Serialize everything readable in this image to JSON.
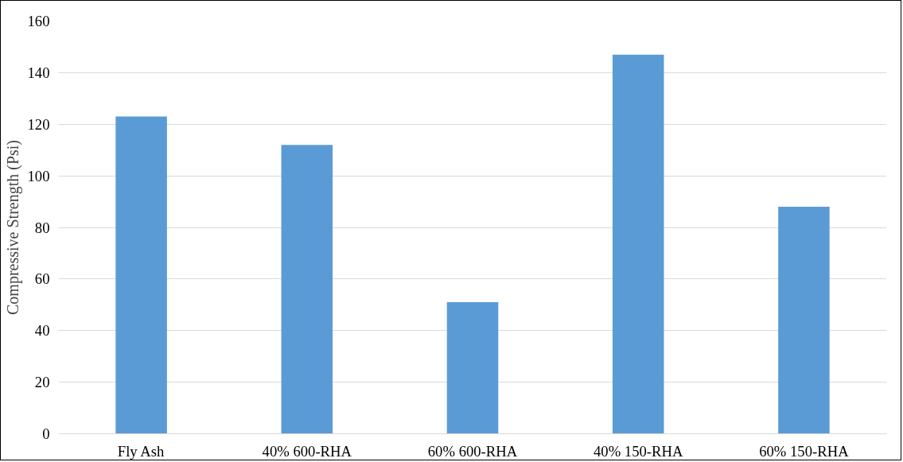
{
  "chart_data": {
    "type": "bar",
    "ylabel": "Compressive Strength (Psi)",
    "categories": [
      "Fly Ash",
      "40% 600-RHA",
      "60% 600-RHA",
      "40% 150-RHA",
      "60% 150-RHA"
    ],
    "values": [
      123,
      112,
      51,
      147,
      88
    ],
    "color": "#5b9bd5",
    "ylim": [
      0,
      160
    ],
    "yticks": [
      0,
      20,
      40,
      60,
      80,
      100,
      120,
      140,
      160
    ],
    "grid": "y"
  }
}
